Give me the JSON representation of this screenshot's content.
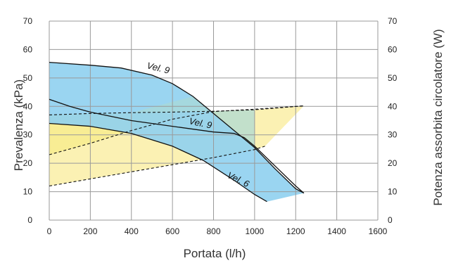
{
  "chart_data": {
    "type": "line",
    "xlabel": "Portata (l/h)",
    "ylabel": "Prevalenza (kPa)",
    "y2label": "Potenza assorbita circolatore (W)",
    "xlim": [
      0,
      1600
    ],
    "ylim": [
      0,
      70
    ],
    "y2lim": [
      0,
      70
    ],
    "x_ticks": [
      0,
      200,
      400,
      600,
      800,
      1000,
      1200,
      1400,
      1600
    ],
    "y_ticks": [
      0,
      10,
      20,
      30,
      40,
      50,
      60,
      70
    ],
    "y2_ticks": [
      0,
      10,
      20,
      30,
      40,
      50,
      60,
      70
    ],
    "grid": true,
    "colors": {
      "head_band": "#8fd0f0",
      "power_band": "#fbf1b3",
      "power_band_low": "#f6ea7a",
      "overlap": "#a9d8d6",
      "curve": "#111111",
      "grid": "#9a9a9a"
    },
    "series": [
      {
        "name": "Vel. 9",
        "kind": "head",
        "style": "solid",
        "x": [
          0,
          200,
          350,
          500,
          600,
          700,
          800,
          900,
          1000,
          1100,
          1200,
          1240
        ],
        "y": [
          55.5,
          54.5,
          53.5,
          51.0,
          48.0,
          43.5,
          37.5,
          31.5,
          25.5,
          18.0,
          11.0,
          9.5
        ]
      },
      {
        "name": "Vel. 9",
        "kind": "head",
        "style": "solid",
        "x": [
          0,
          100,
          200,
          400,
          600,
          800,
          900,
          950,
          1000,
          1100,
          1200,
          1240
        ],
        "y": [
          42.5,
          40.0,
          38.0,
          35.0,
          33.0,
          31.0,
          30.5,
          29.0,
          26.0,
          19.0,
          12.0,
          9.5
        ]
      },
      {
        "name": "Vel. 6",
        "kind": "head",
        "style": "solid",
        "x": [
          0,
          200,
          400,
          600,
          750,
          900,
          1000,
          1060
        ],
        "y": [
          34.0,
          33.0,
          30.5,
          26.0,
          21.0,
          14.0,
          9.0,
          6.5
        ]
      },
      {
        "name": "",
        "kind": "power",
        "style": "dashed",
        "x": [
          0,
          200,
          400,
          600,
          800,
          1000,
          1240
        ],
        "y": [
          37.0,
          37.5,
          37.8,
          38.0,
          38.3,
          38.8,
          40.2
        ]
      },
      {
        "name": "",
        "kind": "power",
        "style": "dashed",
        "x": [
          0,
          200,
          400,
          600,
          800,
          1000,
          1240
        ],
        "y": [
          23.0,
          27.0,
          31.5,
          35.5,
          38.2,
          39.0,
          40.2
        ]
      },
      {
        "name": "",
        "kind": "power",
        "style": "dashed",
        "x": [
          0,
          200,
          400,
          600,
          800,
          1000,
          1050
        ],
        "y": [
          12.0,
          14.5,
          17.0,
          19.5,
          22.0,
          24.8,
          26.0
        ]
      }
    ],
    "annotations": [
      "Vel. 9",
      "Vel. 9",
      "Vel. 6"
    ]
  }
}
